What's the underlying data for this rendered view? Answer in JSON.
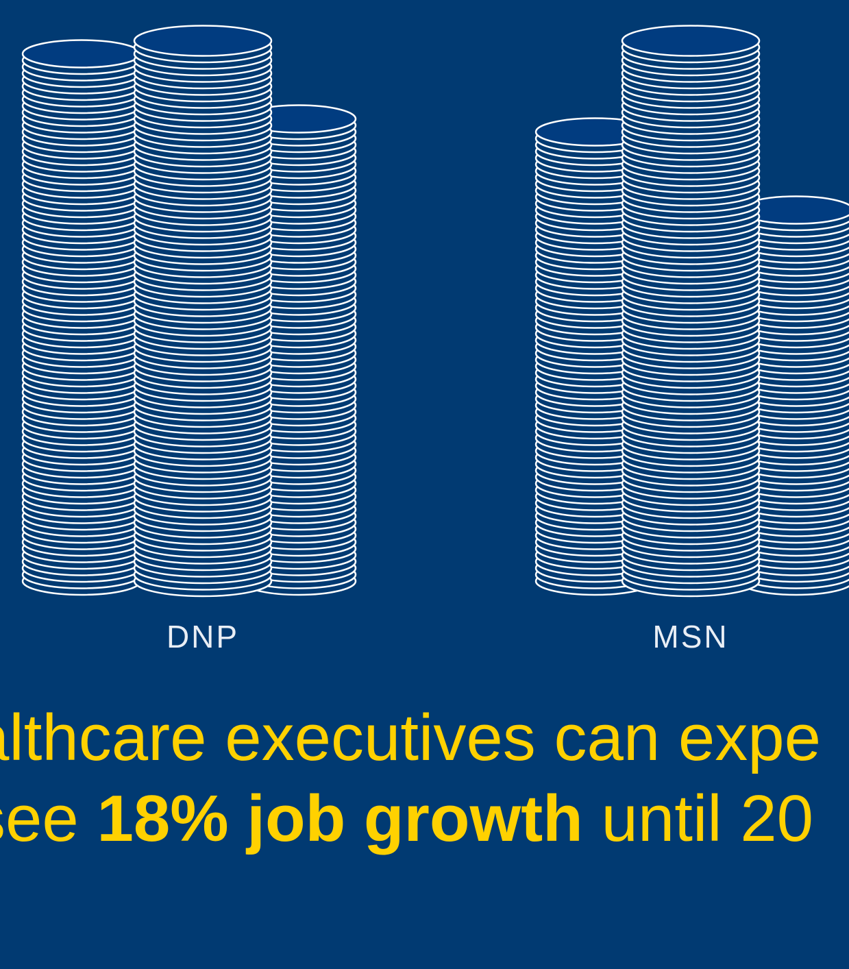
{
  "colors": {
    "background": "#013a72",
    "coin_fill": "#013a72",
    "coin_top": "#013c80",
    "coin_stroke": "#ffffff",
    "caption": "#ffd100",
    "label": "#e9eef5"
  },
  "chart_data": {
    "type": "bar",
    "style": "stacked-coin pictograph",
    "categories": [
      "DNP",
      "MSN"
    ],
    "series_coin_counts": [
      {
        "group": "DNP",
        "stacks": [
          82,
          84,
          72
        ]
      },
      {
        "group": "MSN",
        "stacks": [
          70,
          84,
          58
        ]
      }
    ],
    "title": "",
    "xlabel": "",
    "ylabel": ""
  },
  "labels": {
    "dnp": "DNP",
    "msn": "MSN"
  },
  "caption": {
    "line1": "althcare executives can expe",
    "line2_pre": "see ",
    "line2_bold": "18% job growth",
    "line2_post": " until 20"
  }
}
